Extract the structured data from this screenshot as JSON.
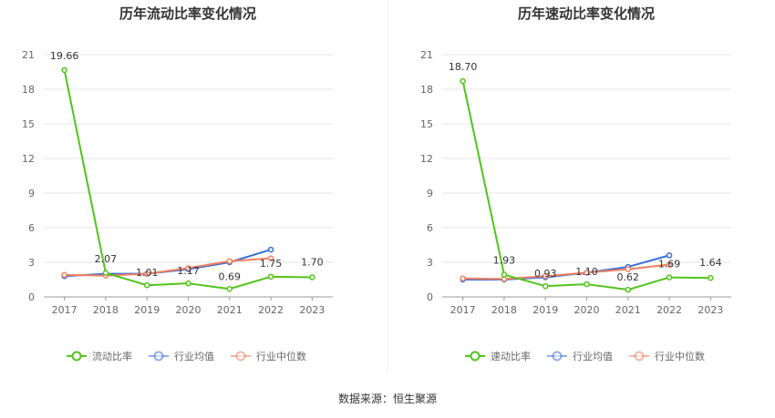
{
  "chart_data": [
    {
      "type": "line",
      "title": "历年流动比率变化情况",
      "categories": [
        "2017",
        "2018",
        "2019",
        "2020",
        "2021",
        "2022",
        "2023"
      ],
      "yticks": [
        "0",
        "3",
        "6",
        "9",
        "12",
        "15",
        "18",
        "21"
      ],
      "ylim": [
        0,
        21
      ],
      "grid": true,
      "legend_position": "bottom",
      "series": [
        {
          "name": "流动比率",
          "color": "#52c41a",
          "values": [
            19.66,
            2.07,
            1.01,
            1.17,
            0.69,
            1.75,
            1.7
          ],
          "labels": [
            "19.66",
            "2.07",
            "1.01",
            "1.17",
            "0.69",
            "1.75",
            "1.70"
          ]
        },
        {
          "name": "行业均值",
          "color": "#3a6fd8",
          "values": [
            1.8,
            2.0,
            2.0,
            2.4,
            3.0,
            4.1,
            null
          ]
        },
        {
          "name": "行业中位数",
          "color": "#f08060",
          "values": [
            1.9,
            1.85,
            2.0,
            2.5,
            3.1,
            3.35,
            null
          ]
        }
      ]
    },
    {
      "type": "line",
      "title": "历年速动比率变化情况",
      "categories": [
        "2017",
        "2018",
        "2019",
        "2020",
        "2021",
        "2022",
        "2023"
      ],
      "yticks": [
        "0",
        "3",
        "6",
        "9",
        "12",
        "15",
        "18",
        "21"
      ],
      "ylim": [
        0,
        21
      ],
      "grid": true,
      "legend_position": "bottom",
      "series": [
        {
          "name": "速动比率",
          "color": "#52c41a",
          "values": [
            18.7,
            1.93,
            0.93,
            1.1,
            0.62,
            1.69,
            1.64
          ],
          "labels": [
            "18.70",
            "1.93",
            "0.93",
            "1.10",
            "0.62",
            "1.69",
            "1.64"
          ]
        },
        {
          "name": "行业均值",
          "color": "#3a6fd8",
          "values": [
            1.5,
            1.5,
            1.7,
            2.1,
            2.6,
            3.6,
            null
          ]
        },
        {
          "name": "行业中位数",
          "color": "#f08060",
          "values": [
            1.6,
            1.55,
            1.8,
            2.1,
            2.4,
            2.8,
            null
          ]
        }
      ]
    }
  ],
  "footer": {
    "source": "数据来源：恒生聚源"
  }
}
